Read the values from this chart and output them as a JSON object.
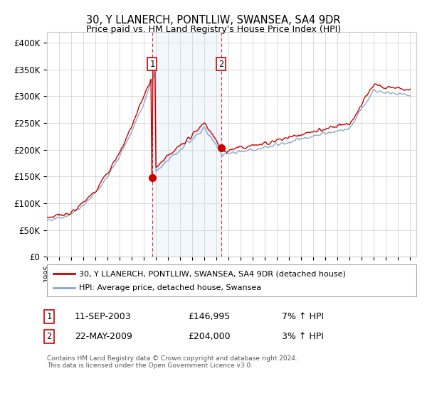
{
  "title": "30, Y LLANERCH, PONTLLIW, SWANSEA, SA4 9DR",
  "subtitle": "Price paid vs. HM Land Registry's House Price Index (HPI)",
  "ylim": [
    0,
    420000
  ],
  "yticks": [
    0,
    50000,
    100000,
    150000,
    200000,
    250000,
    300000,
    350000,
    400000
  ],
  "xlim_start": 1995.0,
  "xlim_end": 2025.5,
  "sale1_x": 2003.69,
  "sale1_y": 146995,
  "sale2_x": 2009.38,
  "sale2_y": 204000,
  "sale1_date": "11-SEP-2003",
  "sale1_price": "£146,995",
  "sale1_hpi": "7% ↑ HPI",
  "sale2_date": "22-MAY-2009",
  "sale2_price": "£204,000",
  "sale2_hpi": "3% ↑ HPI",
  "legend_line1": "30, Y LLANERCH, PONTLLIW, SWANSEA, SA4 9DR (detached house)",
  "legend_line2": "HPI: Average price, detached house, Swansea",
  "footer": "Contains HM Land Registry data © Crown copyright and database right 2024.\nThis data is licensed under the Open Government Licence v3.0.",
  "property_color": "#cc0000",
  "hpi_color": "#88aacc",
  "shade_color": "#cce0f0",
  "vline_color": "#cc0000",
  "background_color": "#ffffff",
  "grid_color": "#cccccc"
}
